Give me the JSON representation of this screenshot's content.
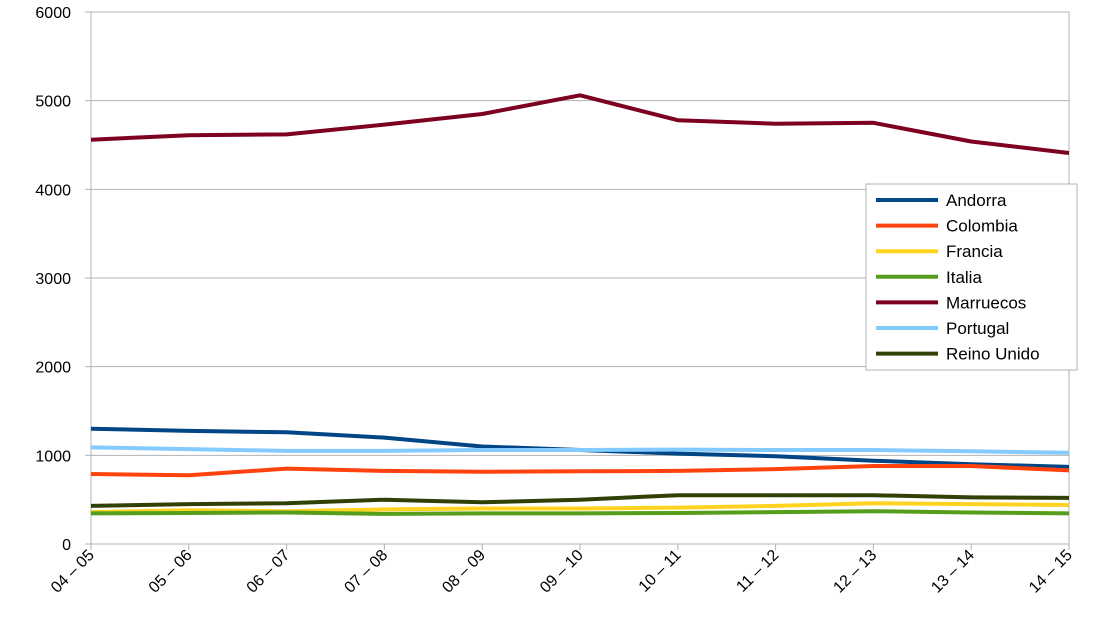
{
  "chart_data": {
    "type": "line",
    "title": "",
    "xlabel": "",
    "ylabel": "",
    "ylim": [
      0,
      6000
    ],
    "yticks": [
      "0",
      "1000",
      "2000",
      "3000",
      "4000",
      "5000",
      "6000"
    ],
    "categories": [
      "04 – 05",
      "05 – 06",
      "06 – 07",
      "07 – 08",
      "08 – 09",
      "09 – 10",
      "10 – 11",
      "11 – 12",
      "12 – 13",
      "13 – 14",
      "14 – 15"
    ],
    "grid": "horizontal",
    "legend_position": "right",
    "series": [
      {
        "name": "Andorra",
        "color": "#004586",
        "values": [
          1300,
          1275,
          1260,
          1200,
          1100,
          1060,
          1020,
          990,
          940,
          900,
          870
        ]
      },
      {
        "name": "Colombia",
        "color": "#ff420e",
        "values": [
          790,
          775,
          850,
          825,
          815,
          820,
          825,
          845,
          880,
          880,
          830
        ]
      },
      {
        "name": "Francia",
        "color": "#ffd320",
        "values": [
          360,
          380,
          370,
          390,
          400,
          400,
          410,
          430,
          460,
          450,
          440
        ]
      },
      {
        "name": "Italia",
        "color": "#579d1c",
        "values": [
          345,
          350,
          355,
          340,
          345,
          345,
          350,
          360,
          370,
          355,
          345
        ]
      },
      {
        "name": "Marruecos",
        "color": "#7e0021",
        "values": [
          4560,
          4610,
          4620,
          4730,
          4850,
          5060,
          4780,
          4740,
          4750,
          4540,
          4410
        ]
      },
      {
        "name": "Portugal",
        "color": "#83caff",
        "values": [
          1090,
          1070,
          1050,
          1050,
          1060,
          1060,
          1065,
          1060,
          1060,
          1045,
          1030
        ]
      },
      {
        "name": "Reino Unido",
        "color": "#314004",
        "values": [
          430,
          450,
          460,
          500,
          470,
          500,
          550,
          550,
          550,
          525,
          520
        ]
      }
    ]
  }
}
